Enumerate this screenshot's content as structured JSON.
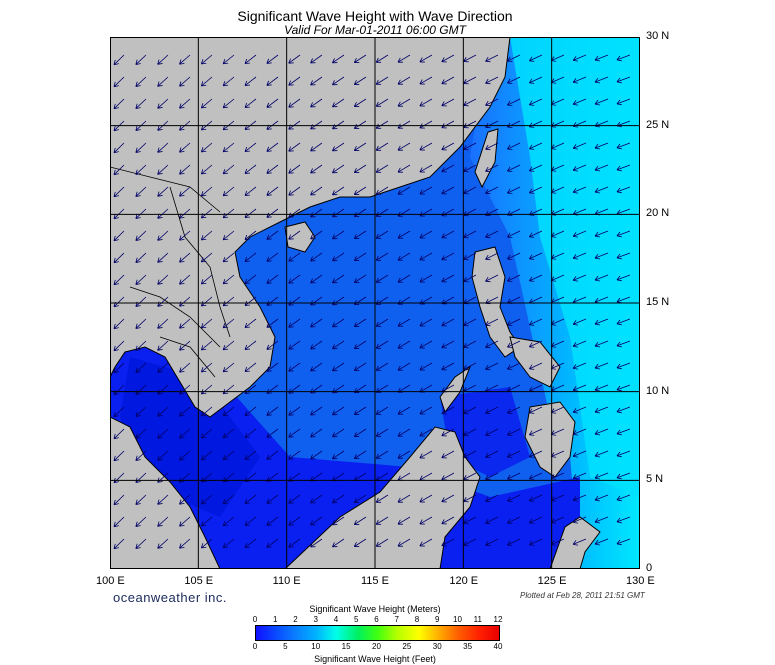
{
  "title": "Significant Wave Height with Wave Direction",
  "subtitle": "Valid For Mar-01-2011 06:00 GMT",
  "lon_labels": [
    "100 E",
    "105 E",
    "110 E",
    "115 E",
    "120 E",
    "125 E",
    "130 E"
  ],
  "lat_labels": [
    "30 N",
    "25 N",
    "20 N",
    "15 N",
    "10 N",
    "5 N",
    "0"
  ],
  "brand": "oceanweather inc.",
  "plotted": "Plotted at Feb 28, 2011 21:51 GMT",
  "colorbar": {
    "meters_title": "Significant Wave Height (Meters)",
    "feet_title": "Significant Wave Height (Feet)",
    "meters_ticks": [
      "0",
      "1",
      "2",
      "3",
      "4",
      "5",
      "6",
      "7",
      "8",
      "9",
      "10",
      "11",
      "12"
    ],
    "feet_ticks": [
      "0",
      "5",
      "10",
      "15",
      "20",
      "25",
      "30",
      "35",
      "40"
    ]
  },
  "colors": {
    "land": "#c0c0c0",
    "sea_low": "#0000dd",
    "sea_mid": "#1060f0",
    "sea_high": "#00e8ff",
    "arrow": "#000066"
  }
}
